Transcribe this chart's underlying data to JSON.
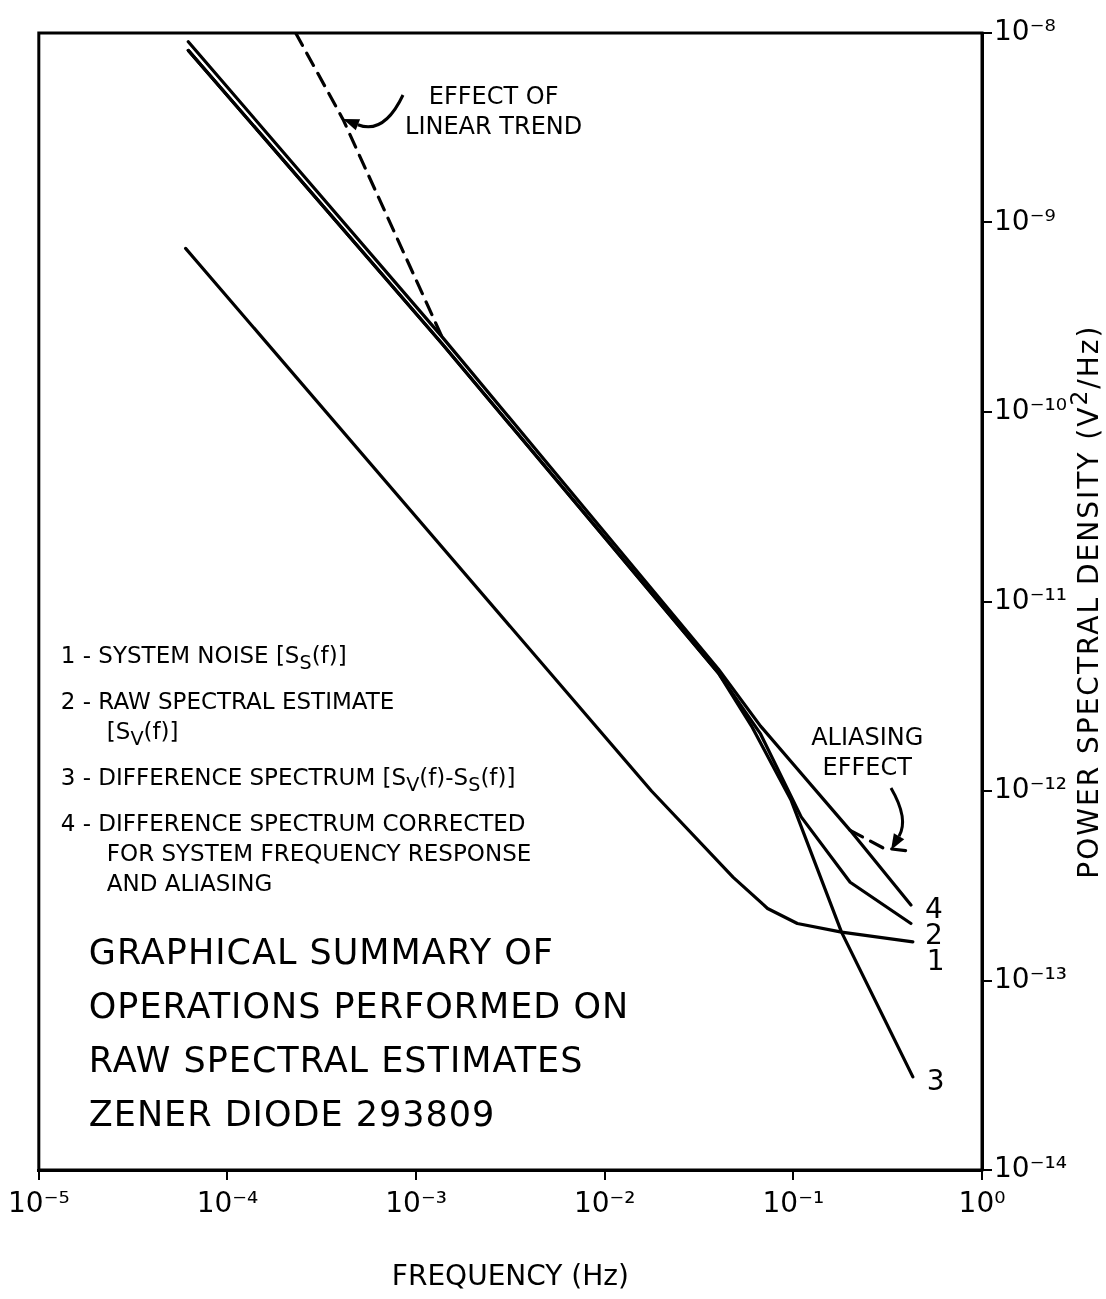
{
  "chart_data": {
    "type": "line",
    "title": "GRAPHICAL SUMMARY OF\nOPERATIONS PERFORMED ON\nRAW SPECTRAL ESTIMATES\nZENER DIODE 293809",
    "xlabel": "FREQUENCY (Hz)",
    "ylabel": "POWER SPECTRAL DENSITY (V$^{2}$/Hz)",
    "log": "xy",
    "marker": "none",
    "xlim": [
      1e-05,
      1
    ],
    "ylim": [
      1e-14,
      1e-08
    ],
    "xticks": [
      {
        "value": 1e-05,
        "label": "10⁻⁵"
      },
      {
        "value": 0.0001,
        "label": "10⁻⁴"
      },
      {
        "value": 0.001,
        "label": "10⁻³"
      },
      {
        "value": 0.01,
        "label": "10⁻²"
      },
      {
        "value": 0.1,
        "label": "10⁻¹"
      },
      {
        "value": 1,
        "label": "10⁰"
      }
    ],
    "yticks": [
      {
        "value": 1e-14,
        "label": "10⁻¹⁴"
      },
      {
        "value": 1e-13,
        "label": "10⁻¹³"
      },
      {
        "value": 1e-12,
        "label": "10⁻¹²"
      },
      {
        "value": 1e-11,
        "label": "10⁻¹¹"
      },
      {
        "value": 1e-10,
        "label": "10⁻¹⁰"
      },
      {
        "value": 1e-09,
        "label": "10⁻⁹"
      },
      {
        "value": 1e-08,
        "label": "10⁻⁸"
      }
    ],
    "series": [
      {
        "name": "4",
        "color": "#000000",
        "x": [
          6.2e-05,
          0.00137,
          0.04,
          0.067,
          0.2,
          0.42
        ],
        "values": [
          9e-09,
          2.5e-10,
          4.4e-12,
          2.2e-12,
          6.2e-13,
          2.5e-13
        ]
      },
      {
        "name": "2",
        "color": "#000000",
        "x": [
          6.2e-05,
          0.00137,
          0.04,
          0.067,
          0.11,
          0.2,
          0.42
        ],
        "values": [
          8.1e-09,
          2.3e-10,
          4.2e-12,
          2e-12,
          7.3e-13,
          3.3e-13,
          2e-13
        ]
      },
      {
        "name": "3",
        "color": "#000000",
        "x": [
          6.2e-05,
          0.00137,
          0.04,
          0.06,
          0.097,
          0.18,
          0.43
        ],
        "values": [
          8.1e-09,
          2.3e-10,
          4.2e-12,
          2.2e-12,
          9e-13,
          1.8e-13,
          3.1e-14
        ]
      },
      {
        "name": "1",
        "color": "#000000",
        "x": [
          6e-05,
          0.0177,
          0.048,
          0.073,
          0.105,
          0.18,
          0.43
        ],
        "values": [
          7.3e-10,
          1e-12,
          3.5e-13,
          2.4e-13,
          2e-13,
          1.8e-13,
          1.6e-13
        ]
      },
      {
        "color": "#000000",
        "line_style": "dashed",
        "x": [
          0.00023,
          0.00041,
          0.00137
        ],
        "values": [
          1e-08,
          3.5e-09,
          2.5e-10
        ]
      },
      {
        "color": "#000000",
        "line_style": "dashed",
        "x": [
          0.2,
          0.3,
          0.43
        ],
        "values": [
          6.2e-13,
          5e-13,
          4.8e-13
        ]
      }
    ],
    "annotations": [
      {
        "text": "EFFECT OF\nLINEAR TREND",
        "x": 0.00041,
        "y": 3.5e-09
      },
      {
        "text": "ALIASING\nEFFECT",
        "x": 0.33,
        "y": 4.9e-13
      },
      "1 - SYSTEM NOISE [S$_{S}$(f)]",
      "2 - RAW SPECTRAL ESTIMATE\n[S$_{V}$(f)]",
      "3 - DIFFERENCE SPECTRUM [S$_{V}$(f)-S$_{S}$(f)]",
      "4 - DIFFERENCE SPECTRUM CORRECTED\nFOR SYSTEM FREQUENCY RESPONSE\nAND ALIASING"
    ]
  }
}
